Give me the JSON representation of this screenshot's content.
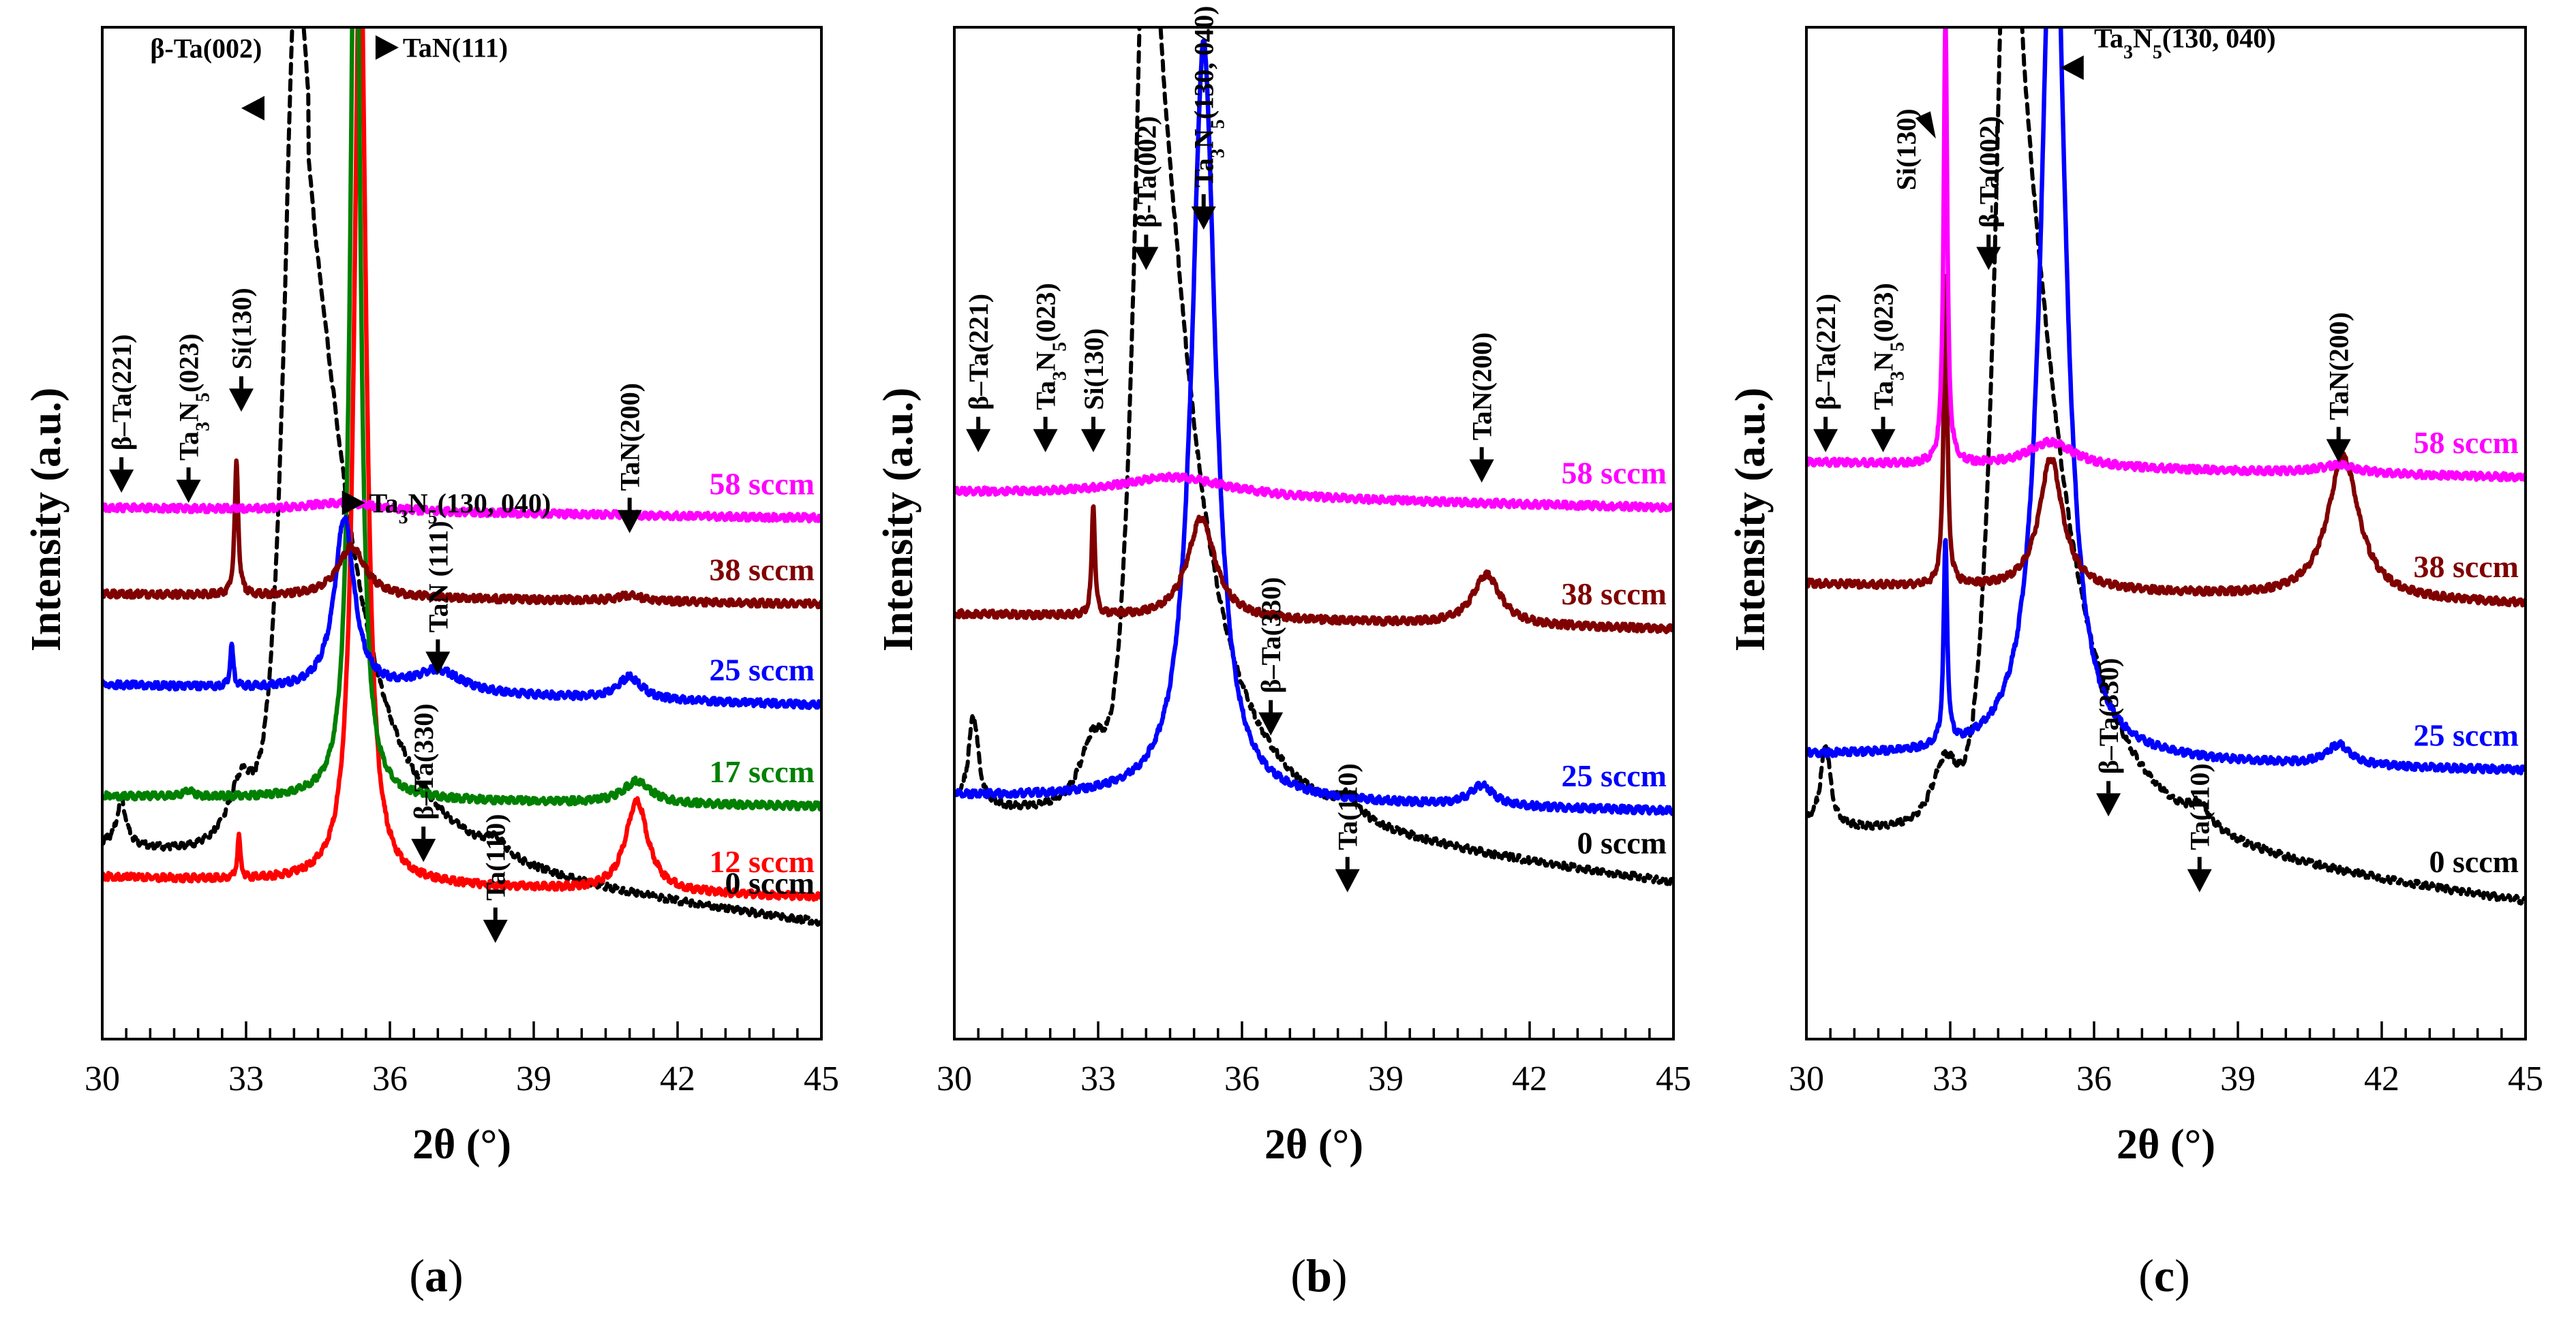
{
  "chart_data": [
    {
      "panel": "a",
      "type": "line",
      "panel_label": "(a)",
      "xlabel": "2θ (°)",
      "ylabel": "Intensity (a.u.)",
      "xlim": [
        30,
        45
      ],
      "ylim": [
        0,
        100
      ],
      "xticks": [
        "30",
        "33",
        "36",
        "39",
        "42",
        "45"
      ],
      "series": [
        {
          "name": "0 sccm",
          "color": "#000000",
          "dashed": true,
          "offset": 5,
          "base": [
            14,
            8
          ],
          "bump": [
            34.3,
            1.2,
            60
          ],
          "peaks": [
            [
              30.4,
              0.12,
              4.5
            ],
            [
              32.9,
              0.35,
              7
            ],
            [
              34.0,
              0.25,
              40
            ],
            [
              38.2,
              0.25,
              1.5
            ]
          ]
        },
        {
          "name": "12 sccm",
          "color": "#ff0000",
          "dashed": false,
          "offset": 14,
          "base": [
            2,
            2
          ],
          "peaks": [
            [
              32.85,
              0.04,
              4
            ],
            [
              35.38,
              0.15,
              95
            ],
            [
              41.15,
              0.28,
              9
            ]
          ]
        },
        {
          "name": "17 sccm",
          "color": "#008000",
          "dashed": false,
          "offset": 22,
          "base": [
            2,
            1
          ],
          "peaks": [
            [
              31.8,
              0.1,
              0.6
            ],
            [
              35.28,
              0.12,
              100
            ],
            [
              41.15,
              0.35,
              2.2
            ]
          ]
        },
        {
          "name": "25 sccm",
          "color": "#0000ff",
          "dashed": false,
          "offset": 32,
          "base": [
            3,
            2
          ],
          "peaks": [
            [
              32.7,
              0.04,
              4
            ],
            [
              35.05,
              0.25,
              17
            ],
            [
              37.0,
              0.6,
              2.2
            ],
            [
              41.0,
              0.3,
              2.2
            ]
          ]
        },
        {
          "name": "38 sccm",
          "color": "#800000",
          "dashed": false,
          "offset": 42.5,
          "base": [
            1.5,
            1
          ],
          "peaks": [
            [
              32.8,
              0.045,
              13
            ],
            [
              35.2,
              0.35,
              5
            ],
            [
              41.0,
              0.3,
              0.6
            ]
          ]
        },
        {
          "name": "58 sccm",
          "color": "#ff00ff",
          "dashed": false,
          "offset": 50.5,
          "base": [
            2,
            1
          ],
          "peaks": [
            [
              35.0,
              1.0,
              0.8
            ]
          ]
        }
      ],
      "annotations": [
        {
          "text": "β-Ta(002)",
          "x": 31.0,
          "y": 97,
          "dir": "left",
          "ax": 32.9,
          "ay": 92
        },
        {
          "text": "TaN(111)",
          "x": 36.7,
          "y": 98,
          "dir": "right",
          "ax": 35.7,
          "ay": 98
        },
        {
          "text": "β–Ta(221)",
          "x": 30.4,
          "y": 55,
          "dir": "down",
          "ax": 30.4,
          "ay": 54
        },
        {
          "text": "Ta3N5(023)",
          "x": 31.8,
          "y": 54,
          "dir": "down",
          "ax": 31.8,
          "ay": 53
        },
        {
          "text": "Si(130)",
          "x": 32.9,
          "y": 63,
          "dir": "down",
          "ax": 32.9,
          "ay": 62
        },
        {
          "text": "Ta3N5(130, 040)",
          "x": 34.8,
          "y": 53,
          "dir": "right",
          "ax": 35.0,
          "ay": 53
        },
        {
          "text": "TaN(200)",
          "x": 41.0,
          "y": 51,
          "dir": "down",
          "ax": 41.0,
          "ay": 50
        },
        {
          "text": "TaN (111)",
          "x": 38.3,
          "y": 37,
          "dir": "down",
          "ax": 37.0,
          "ay": 36
        },
        {
          "text": "β–Ta(330)",
          "x": 38.0,
          "y": 18.5,
          "dir": "down",
          "ax": 36.7,
          "ay": 17.5
        },
        {
          "text": "Ta(110)",
          "x": 39.5,
          "y": 10.5,
          "dir": "down",
          "ax": 38.2,
          "ay": 9.5
        }
      ]
    },
    {
      "panel": "b",
      "type": "line",
      "panel_label": "(b)",
      "xlabel": "2θ (°)",
      "ylabel": "Intensity (a.u.)",
      "xlim": [
        30,
        45
      ],
      "ylim": [
        0,
        100
      ],
      "xticks": [
        "30",
        "33",
        "36",
        "39",
        "42",
        "45"
      ],
      "series": [
        {
          "name": "0 sccm",
          "color": "#000000",
          "dashed": true,
          "offset": 7,
          "base": [
            16,
            8
          ],
          "bump": [
            34.2,
            1.1,
            70
          ],
          "peaks": [
            [
              30.4,
              0.12,
              9
            ],
            [
              32.9,
              0.35,
              7
            ],
            [
              34.0,
              0.25,
              40
            ],
            [
              38.2,
              0.25,
              2
            ]
          ]
        },
        {
          "name": "25 sccm",
          "color": "#0000ff",
          "dashed": false,
          "offset": 22.5,
          "base": [
            1.5,
            1.5
          ],
          "peaks": [
            [
              35.2,
              0.3,
              75
            ],
            [
              41.0,
              0.3,
              2
            ]
          ]
        },
        {
          "name": "38 sccm",
          "color": "#800000",
          "dashed": false,
          "offset": 40,
          "base": [
            2,
            1.5
          ],
          "peaks": [
            [
              32.9,
              0.04,
              11
            ],
            [
              35.15,
              0.35,
              10
            ],
            [
              41.1,
              0.35,
              5
            ]
          ]
        },
        {
          "name": "58 sccm",
          "color": "#ff00ff",
          "dashed": false,
          "offset": 51,
          "base": [
            3,
            1.5
          ],
          "peaks": [
            [
              34.6,
              1.4,
              2
            ]
          ]
        }
      ],
      "annotations": [
        {
          "text": "Ta3N5(130, 040)",
          "x": 35.2,
          "y": 86,
          "dir": "down",
          "ax": 35.2,
          "ay": 80
        },
        {
          "text": "β–Ta(221)",
          "x": 30.5,
          "y": 59,
          "dir": "down",
          "ax": 30.5,
          "ay": 58
        },
        {
          "text": "Ta3N5(023)",
          "x": 31.9,
          "y": 59,
          "dir": "down",
          "ax": 31.9,
          "ay": 58
        },
        {
          "text": "Si(130)",
          "x": 32.9,
          "y": 59,
          "dir": "down",
          "ax": 32.9,
          "ay": 58
        },
        {
          "text": "β-Ta(002)",
          "x": 34.0,
          "y": 77,
          "dir": "down",
          "ax": 34.0,
          "ay": 76
        },
        {
          "text": "TaN(200)",
          "x": 41.0,
          "y": 56,
          "dir": "down",
          "ax": 41.0,
          "ay": 55
        },
        {
          "text": "β–Ta(330)",
          "x": 38.0,
          "y": 31,
          "dir": "down",
          "ax": 36.6,
          "ay": 30
        },
        {
          "text": "Ta(110)",
          "x": 38.2,
          "y": 19,
          "dir": "down",
          "ax": 38.2,
          "ay": 14.5
        },
        {
          "text": "58 sccm",
          "x": 0,
          "y": 0,
          "dir": "none",
          "ax": 0,
          "ay": 0
        }
      ]
    },
    {
      "panel": "c",
      "type": "line",
      "panel_label": "(c)",
      "xlabel": "2θ (°)",
      "ylabel": "Intensity (a.u.)",
      "xlim": [
        30,
        45
      ],
      "ylim": [
        0,
        100
      ],
      "xticks": [
        "30",
        "33",
        "36",
        "39",
        "42",
        "45"
      ],
      "series": [
        {
          "name": "0 sccm",
          "color": "#000000",
          "dashed": true,
          "offset": 7,
          "base": [
            14,
            8
          ],
          "bump": [
            34.4,
            1.2,
            70
          ],
          "peaks": [
            [
              30.4,
              0.12,
              8
            ],
            [
              32.9,
              0.35,
              7
            ],
            [
              34.2,
              0.25,
              45
            ],
            [
              38.2,
              0.25,
              2
            ]
          ]
        },
        {
          "name": "25 sccm",
          "color": "#0000ff",
          "dashed": false,
          "offset": 26,
          "base": [
            2,
            1.5
          ],
          "peaks": [
            [
              32.9,
              0.045,
              20
            ],
            [
              35.15,
              0.3,
              92
            ],
            [
              41.1,
              0.3,
              2
            ]
          ]
        },
        {
          "name": "38 sccm",
          "color": "#800000",
          "dashed": false,
          "offset": 42,
          "base": [
            3,
            2
          ],
          "peaks": [
            [
              32.9,
              0.045,
              31
            ],
            [
              35.1,
              0.3,
              13
            ],
            [
              41.2,
              0.4,
              14
            ]
          ]
        },
        {
          "name": "58 sccm",
          "color": "#ff00ff",
          "dashed": false,
          "offset": 55,
          "base": [
            2,
            1.5
          ],
          "peaks": [
            [
              32.9,
              0.045,
              44
            ],
            [
              35.1,
              0.6,
              2.5
            ],
            [
              41.1,
              0.5,
              0.8
            ]
          ]
        }
      ],
      "annotations": [
        {
          "text": "Ta3N5(130, 040)",
          "x": 36.0,
          "y": 98,
          "dir": "left",
          "ax": 35.3,
          "ay": 96
        },
        {
          "text": "Si(130)",
          "x": 32.4,
          "y": 93,
          "dir": "leftdown",
          "ax": 32.7,
          "ay": 89
        },
        {
          "text": "β–Ta(221)",
          "x": 30.4,
          "y": 59,
          "dir": "down",
          "ax": 30.4,
          "ay": 58
        },
        {
          "text": "Ta3N5(023)",
          "x": 31.6,
          "y": 59,
          "dir": "down",
          "ax": 31.6,
          "ay": 58
        },
        {
          "text": "β-Ta(002)",
          "x": 33.8,
          "y": 77,
          "dir": "down",
          "ax": 33.8,
          "ay": 76
        },
        {
          "text": "TaN(200)",
          "x": 41.1,
          "y": 58,
          "dir": "down",
          "ax": 41.1,
          "ay": 57
        },
        {
          "text": "β–Ta(330)",
          "x": 36.2,
          "y": 23,
          "dir": "down",
          "ax": 36.3,
          "ay": 22
        },
        {
          "text": "Ta(110)",
          "x": 38.2,
          "y": 19,
          "dir": "down",
          "ax": 38.2,
          "ay": 14.5
        }
      ]
    }
  ]
}
